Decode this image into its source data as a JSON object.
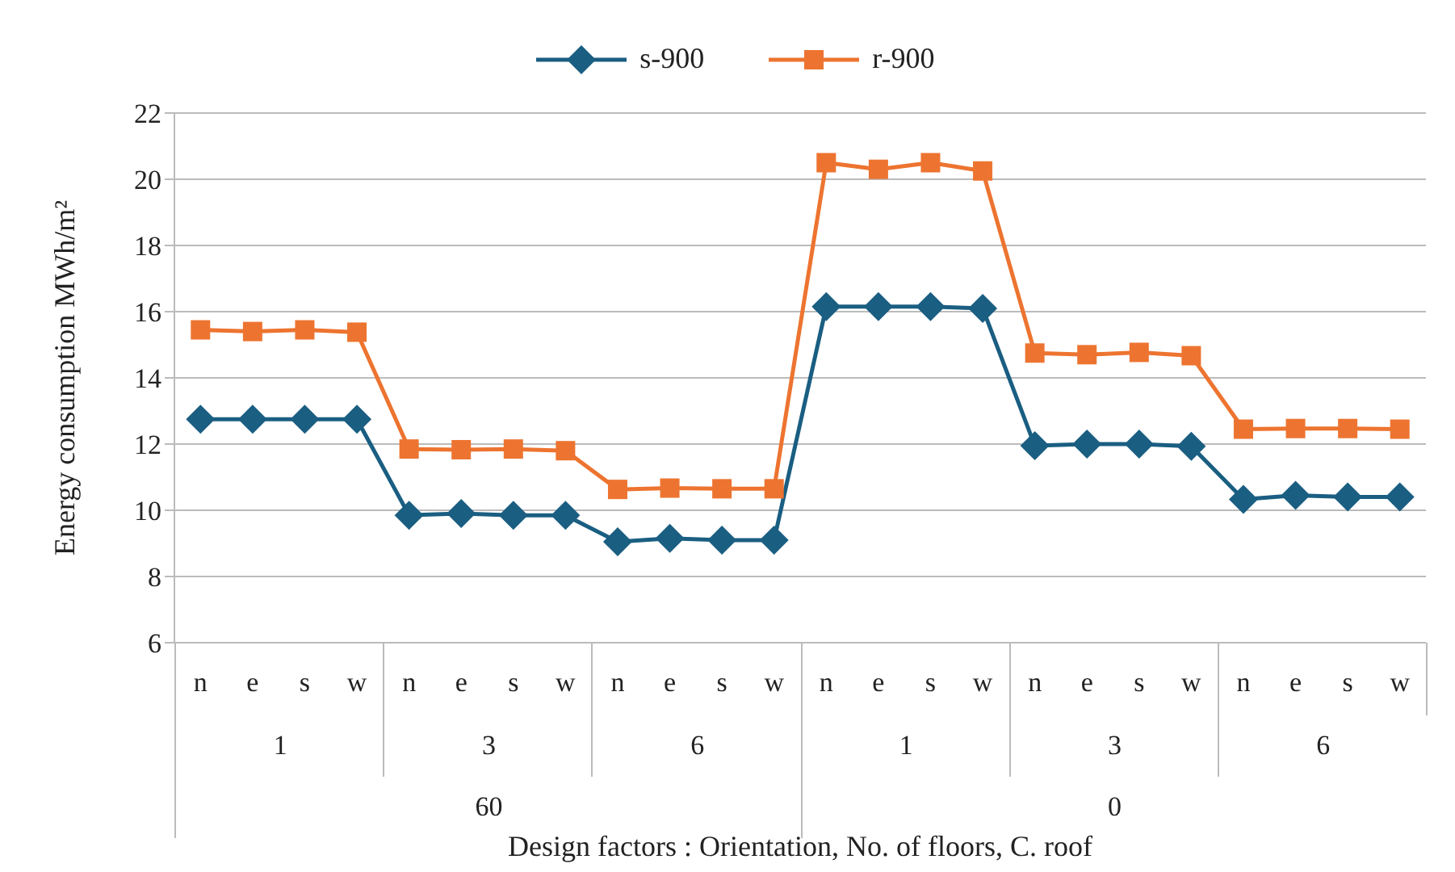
{
  "chart_data": {
    "type": "line",
    "xlabel": "Design factors : Orientation, No. of floors, C. roof",
    "ylabel": "Energy consumption MWh/m²",
    "categories": [
      "n",
      "e",
      "s",
      "w",
      "n",
      "e",
      "s",
      "w",
      "n",
      "e",
      "s",
      "w",
      "n",
      "e",
      "s",
      "w",
      "n",
      "e",
      "s",
      "w",
      "n",
      "e",
      "s",
      "w"
    ],
    "series": [
      {
        "name": "s-900",
        "color": "#1a5e82",
        "marker": "diamond",
        "values": [
          12.75,
          12.75,
          12.75,
          12.75,
          9.85,
          9.9,
          9.85,
          9.85,
          9.05,
          9.15,
          9.1,
          9.1,
          16.15,
          16.15,
          16.15,
          16.1,
          11.95,
          12.0,
          12.0,
          11.93,
          10.33,
          10.45,
          10.4,
          10.4
        ]
      },
      {
        "name": "r-900",
        "color": "#ed7430",
        "marker": "square",
        "values": [
          15.45,
          15.4,
          15.45,
          15.38,
          11.85,
          11.83,
          11.85,
          11.8,
          10.63,
          10.67,
          10.65,
          10.65,
          20.5,
          20.3,
          20.5,
          20.25,
          14.75,
          14.7,
          14.77,
          14.67,
          12.45,
          12.47,
          12.47,
          12.45
        ]
      }
    ],
    "annotations": [
      "1",
      "3",
      "6",
      "1",
      "3",
      "6",
      "60",
      "0"
    ],
    "ylim": [
      6,
      22
    ],
    "yticks": [
      6,
      8,
      10,
      12,
      14,
      16,
      18,
      20,
      22
    ],
    "grid": "y",
    "legend": "top"
  }
}
